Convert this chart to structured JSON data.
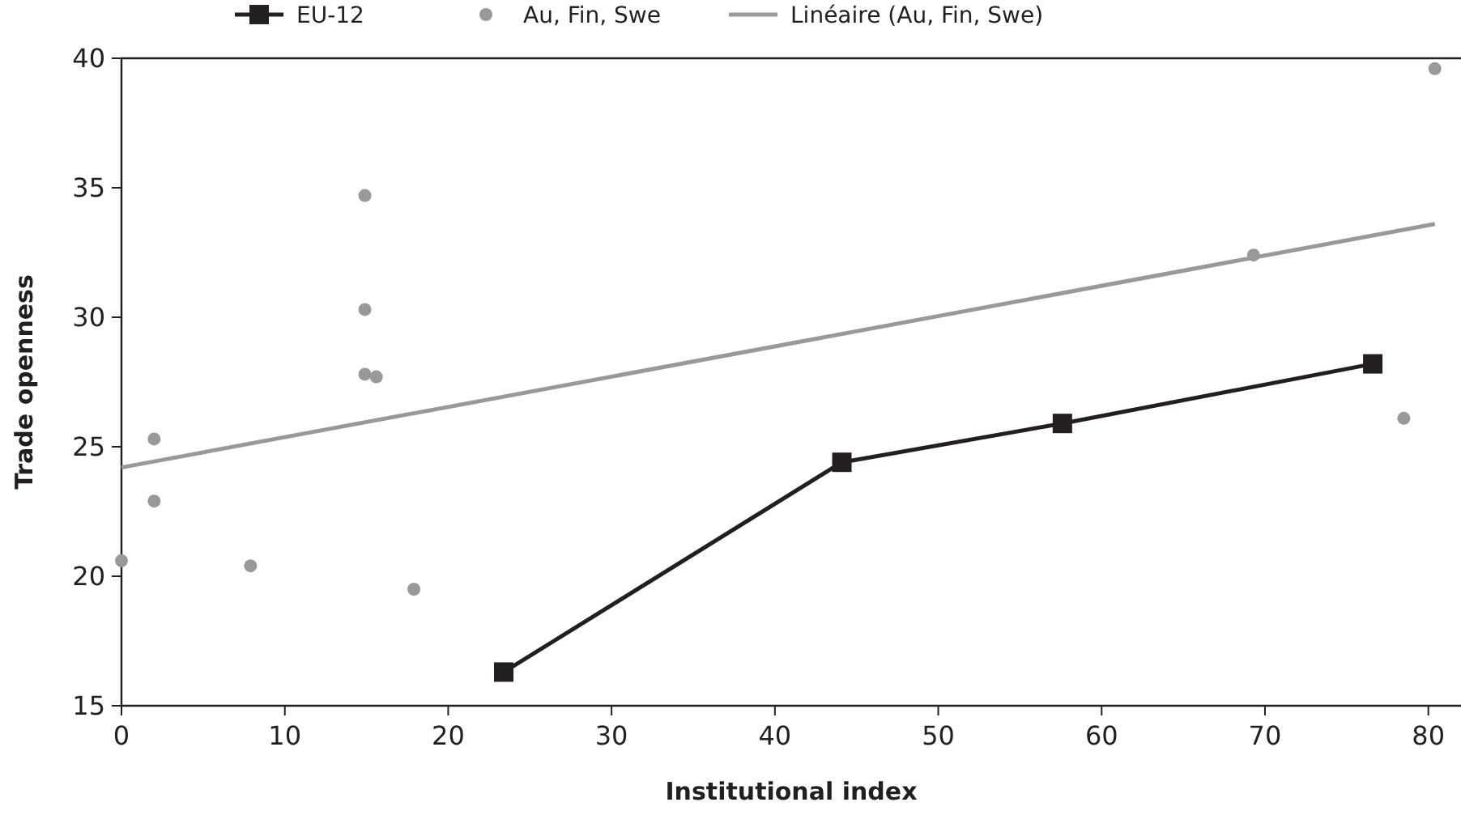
{
  "chart_data": {
    "type": "scatter",
    "xlabel": "Institutional index",
    "ylabel": "Trade openness",
    "xlim": [
      0,
      82
    ],
    "ylim": [
      15,
      40
    ],
    "xticks": [
      0,
      10,
      20,
      30,
      40,
      50,
      60,
      70,
      80
    ],
    "yticks": [
      15,
      20,
      25,
      30,
      35,
      40
    ],
    "grid": false,
    "legend": "top",
    "series": [
      {
        "name": "EU-12",
        "type": "line",
        "color": "#231f20",
        "marker": "square",
        "line_style": "solid",
        "x": [
          23.4,
          44.1,
          57.6,
          76.6
        ],
        "values": [
          16.3,
          24.4,
          25.9,
          28.2
        ]
      },
      {
        "name": "Au, Fin, Swe",
        "color": "#999999",
        "marker": "circle",
        "x": [
          0,
          2,
          2,
          7.9,
          14.9,
          14.9,
          14.9,
          15.6,
          17.9,
          69.3,
          80.4,
          78.5
        ],
        "values": [
          20.6,
          25.3,
          22.9,
          20.4,
          34.7,
          30.3,
          27.8,
          27.7,
          19.5,
          32.4,
          39.6,
          26.1
        ]
      },
      {
        "name": "Linéaire (Au, Fin, Swe)",
        "type": "line",
        "color": "#999999",
        "marker": "none",
        "line_style": "solid",
        "x": [
          0,
          80.4
        ],
        "values": [
          24.2,
          33.6
        ]
      }
    ]
  }
}
